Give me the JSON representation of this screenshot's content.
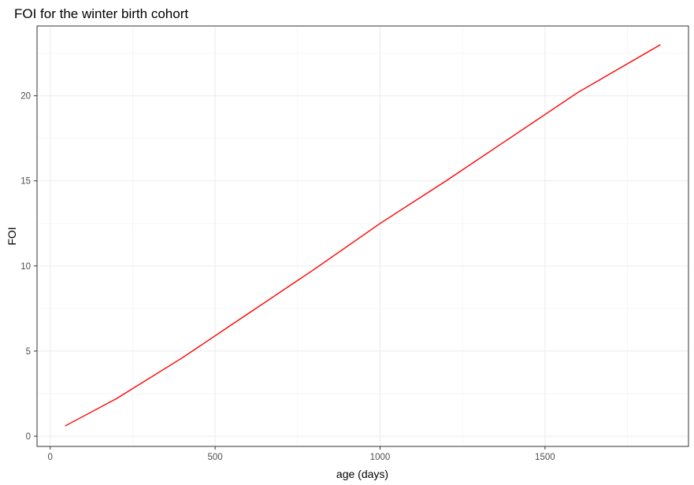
{
  "chart_data": {
    "type": "line",
    "title": "FOI for the winter birth cohort",
    "xlabel": "age (days)",
    "ylabel": "FOI",
    "xlim": [
      -40,
      1935
    ],
    "ylim": [
      -0.6,
      24.1
    ],
    "x_ticks": [
      0,
      500,
      1000,
      1500
    ],
    "x_tick_labels": [
      "0",
      "500",
      "1000",
      "1500"
    ],
    "y_ticks": [
      0,
      5,
      10,
      15,
      20
    ],
    "y_tick_labels": [
      "0",
      "5",
      "10",
      "15",
      "20"
    ],
    "grid": true,
    "legend": "none",
    "series": [
      {
        "color": "#ff0000",
        "x": [
          45,
          200,
          400,
          600,
          800,
          1000,
          1200,
          1400,
          1600,
          1850
        ],
        "y": [
          0.6,
          2.2,
          4.6,
          7.2,
          9.8,
          12.5,
          15.0,
          17.6,
          20.2,
          23.0
        ]
      }
    ]
  }
}
